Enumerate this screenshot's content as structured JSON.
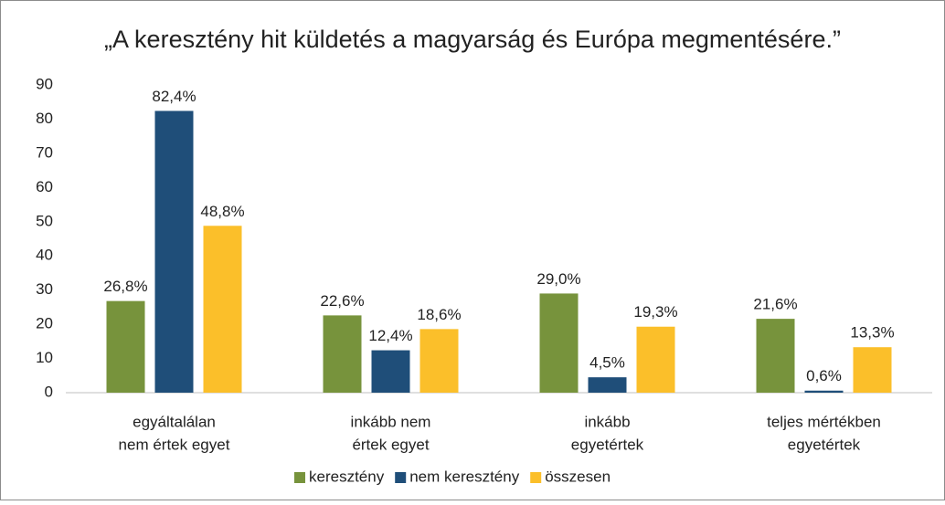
{
  "chart_data": {
    "type": "bar",
    "title": "„A keresztény hit küldetés a magyarság és Európa megmentésére.”",
    "categories": [
      [
        "egyáltalálan",
        "nem értek egyet"
      ],
      [
        "inkább nem",
        "értek egyet"
      ],
      [
        "inkább",
        "egyetértek"
      ],
      [
        "teljes mértékben",
        "egyetértek"
      ]
    ],
    "series": [
      {
        "name": "keresztény",
        "color": "#77933c",
        "values": [
          26.8,
          22.6,
          29.0,
          21.6
        ],
        "value_labels": [
          "26,8%",
          "22,6%",
          "29,0%",
          "21,6%"
        ]
      },
      {
        "name": "nem keresztény",
        "color": "#1f4e79",
        "values": [
          82.4,
          12.4,
          4.5,
          0.6
        ],
        "value_labels": [
          "82,4%",
          "12,4%",
          "4,5%",
          "0,6%"
        ]
      },
      {
        "name": "összesen",
        "color": "#fbbf2a",
        "values": [
          48.8,
          18.6,
          19.3,
          13.3
        ],
        "value_labels": [
          "48,8%",
          "18,6%",
          "19,3%",
          "13,3%"
        ]
      }
    ],
    "ylim": [
      0,
      90
    ],
    "yticks": [
      0,
      10,
      20,
      30,
      40,
      50,
      60,
      70,
      80,
      90
    ],
    "grid": false,
    "legend": "bottom"
  }
}
